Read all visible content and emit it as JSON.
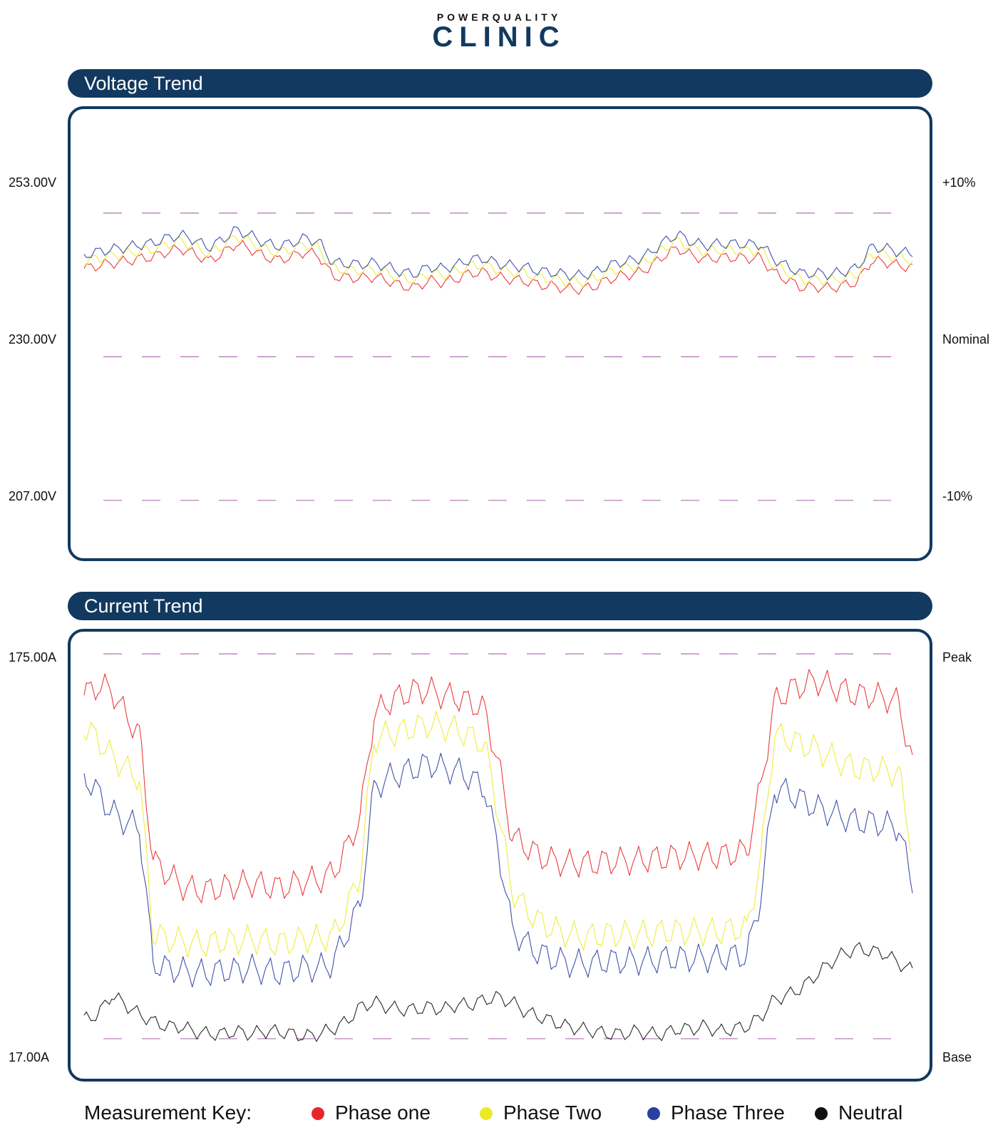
{
  "brand": {
    "top": "POWERQUALITY",
    "main": "CLINIC"
  },
  "colors": {
    "phase_one": "#e8262a",
    "phase_two": "#ecea27",
    "phase_three": "#2a3f9e",
    "neutral": "#111111",
    "brand": "#12395f",
    "ref_line": "#b071b4"
  },
  "chart_data": [
    {
      "type": "line",
      "title": "Voltage Trend",
      "ylim": [
        197.5,
        270
      ],
      "unit": "V",
      "reference_lines": [
        {
          "value": 253.0,
          "left_label": "253.00V",
          "right_label": "+10%"
        },
        {
          "value": 230.0,
          "left_label": "230.00V",
          "right_label": "Nominal"
        },
        {
          "value": 207.0,
          "left_label": "207.00V",
          "right_label": "-10%"
        }
      ],
      "x": [
        0,
        1,
        2,
        3,
        4,
        5,
        6,
        7,
        8,
        9,
        10,
        11,
        12,
        13,
        14,
        15,
        16,
        17,
        18,
        19,
        20,
        21,
        22,
        23,
        24,
        25,
        26,
        27,
        28,
        29,
        30,
        31,
        32,
        33,
        34,
        35,
        36,
        37,
        38,
        39,
        40,
        41,
        42,
        43,
        44,
        45,
        46,
        47,
        48,
        49,
        50,
        51,
        52,
        53,
        54,
        55,
        56,
        57,
        58,
        59,
        60
      ],
      "series": [
        {
          "name": "Phase one",
          "color_key": "phase_one",
          "values": [
            244.1,
            244.6,
            245.0,
            245.3,
            245.7,
            246.0,
            246.8,
            247.3,
            246.5,
            245.3,
            246.5,
            248.1,
            247.3,
            246.1,
            245.5,
            246.0,
            246.8,
            246.2,
            242.9,
            242.7,
            242.6,
            242.8,
            242.2,
            241.3,
            241.1,
            242.2,
            241.9,
            242.5,
            243.4,
            243.5,
            242.7,
            242.4,
            242.1,
            241.5,
            241.3,
            240.9,
            240.8,
            241.3,
            242.4,
            243.0,
            243.3,
            244.4,
            246.2,
            247.4,
            246.2,
            245.6,
            245.9,
            245.9,
            245.8,
            245.8,
            243.4,
            242.2,
            241.1,
            241.2,
            241.0,
            241.4,
            242.0,
            245.3,
            245.2,
            244.6,
            244.3
          ]
        },
        {
          "name": "Phase Two",
          "color_key": "phase_two",
          "values": [
            245.3,
            245.8,
            246.2,
            246.5,
            246.9,
            247.2,
            248.0,
            248.5,
            247.7,
            246.5,
            247.7,
            249.3,
            248.5,
            247.3,
            246.7,
            247.2,
            248.0,
            247.4,
            244.1,
            243.9,
            243.8,
            244.0,
            243.4,
            242.5,
            242.3,
            243.4,
            243.1,
            243.7,
            244.6,
            244.7,
            243.9,
            243.6,
            243.3,
            242.7,
            242.5,
            242.1,
            242.0,
            242.5,
            243.6,
            244.2,
            244.5,
            245.6,
            247.4,
            248.6,
            247.4,
            246.8,
            247.1,
            247.1,
            247.0,
            247.0,
            244.6,
            243.4,
            242.3,
            242.4,
            242.2,
            242.6,
            243.2,
            246.5,
            246.4,
            245.8,
            245.5
          ]
        },
        {
          "name": "Phase Three",
          "color_key": "phase_three",
          "values": [
            246.3,
            246.8,
            247.2,
            247.5,
            247.9,
            248.2,
            249.0,
            249.5,
            248.7,
            247.5,
            248.7,
            250.3,
            249.5,
            248.3,
            247.7,
            248.2,
            249.0,
            248.4,
            245.1,
            244.9,
            244.8,
            245.0,
            244.4,
            243.5,
            243.3,
            244.4,
            244.1,
            244.7,
            245.6,
            245.7,
            244.9,
            244.6,
            244.3,
            243.7,
            243.5,
            243.1,
            243.0,
            243.5,
            244.6,
            245.2,
            245.5,
            246.6,
            248.4,
            249.6,
            248.4,
            247.8,
            248.1,
            248.1,
            248.0,
            248.0,
            245.6,
            244.4,
            243.3,
            243.4,
            243.2,
            243.6,
            244.2,
            247.5,
            247.4,
            246.8,
            246.5
          ]
        }
      ]
    },
    {
      "type": "line",
      "title": "Current Trend",
      "ylim": [
        0,
        185
      ],
      "unit": "A",
      "reference_lines": [
        {
          "value": 175.0,
          "left_label": "175.00A",
          "right_label": "Peak"
        },
        {
          "value": 17.0,
          "left_label": "17.00A",
          "right_label": "Base"
        }
      ],
      "x": [
        0,
        1,
        2,
        3,
        4,
        5,
        6,
        7,
        8,
        9,
        10,
        11,
        12,
        13,
        14,
        15,
        16,
        17,
        18,
        19,
        20,
        21,
        22,
        23,
        24,
        25,
        26,
        27,
        28,
        29,
        30,
        31,
        32,
        33,
        34,
        35,
        36,
        37,
        38,
        39,
        40,
        41,
        42,
        43,
        44,
        45,
        46,
        47,
        48,
        49,
        50,
        51,
        52,
        53,
        54,
        55,
        56,
        57,
        58,
        59,
        60
      ],
      "series": [
        {
          "name": "Phase one",
          "color_key": "phase_one",
          "values": [
            158,
            162,
            160,
            150,
            142,
            90,
            85,
            80,
            78,
            78,
            79,
            80,
            81,
            80,
            79,
            80,
            82,
            82,
            85,
            95,
            108,
            150,
            155,
            158,
            160,
            160,
            158,
            157,
            155,
            152,
            130,
            100,
            96,
            92,
            90,
            89,
            89,
            89,
            90,
            90,
            90,
            91,
            91,
            92,
            92,
            92,
            92,
            93,
            94,
            120,
            155,
            160,
            162,
            164,
            162,
            160,
            158,
            158,
            157,
            155,
            130
          ]
        },
        {
          "name": "Phase Two",
          "color_key": "phase_two",
          "values": [
            145,
            140,
            133,
            128,
            124,
            60,
            58,
            57,
            56,
            56,
            57,
            57,
            58,
            57,
            56,
            57,
            58,
            58,
            59,
            70,
            85,
            140,
            142,
            143,
            145,
            146,
            145,
            144,
            141,
            138,
            110,
            78,
            70,
            65,
            62,
            60,
            59,
            59,
            60,
            60,
            60,
            60,
            61,
            61,
            61,
            61,
            61,
            62,
            62,
            90,
            142,
            140,
            138,
            136,
            133,
            130,
            128,
            128,
            127,
            126,
            95
          ]
        },
        {
          "name": "Phase Three",
          "color_key": "phase_three",
          "values": [
            125,
            118,
            110,
            106,
            104,
            48,
            46,
            45,
            44,
            44,
            45,
            45,
            46,
            45,
            44,
            45,
            46,
            46,
            48,
            60,
            72,
            120,
            124,
            126,
            128,
            130,
            128,
            127,
            124,
            120,
            95,
            62,
            56,
            52,
            50,
            48,
            48,
            48,
            49,
            49,
            49,
            49,
            50,
            50,
            50,
            50,
            50,
            51,
            51,
            75,
            120,
            118,
            115,
            112,
            110,
            108,
            106,
            106,
            105,
            104,
            80
          ]
        },
        {
          "name": "Neutral",
          "color_key": "neutral",
          "values": [
            25,
            27,
            35,
            31,
            27,
            24,
            22,
            22,
            20,
            19,
            19,
            20,
            19,
            20,
            20,
            19,
            18,
            19,
            21,
            24,
            30,
            32,
            30,
            29,
            29,
            30,
            29,
            31,
            31,
            33,
            34,
            32,
            28,
            26,
            24,
            22,
            21,
            20,
            19,
            19,
            20,
            19,
            19,
            21,
            21,
            22,
            20,
            21,
            22,
            26,
            33,
            35,
            38,
            43,
            48,
            52,
            54,
            53,
            52,
            48,
            45
          ]
        }
      ]
    }
  ],
  "legend": {
    "label": "Measurement Key:",
    "items": [
      {
        "name": "Phase one",
        "color_key": "phase_one"
      },
      {
        "name": "Phase Two",
        "color_key": "phase_two"
      },
      {
        "name": "Phase Three",
        "color_key": "phase_three"
      },
      {
        "name": "Neutral",
        "color_key": "neutral"
      }
    ]
  }
}
